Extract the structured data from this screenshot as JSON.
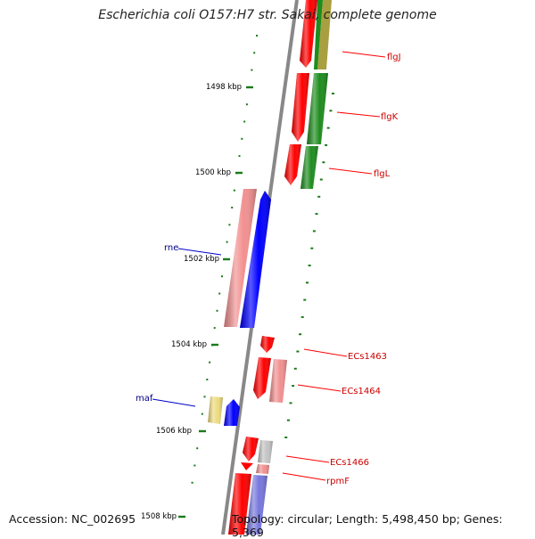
{
  "title": "Escherichia coli O157:H7 str. Sakai, complete genome",
  "accession": "Accession: NC_002695",
  "summary": "Topology: circular; Length: 5,498,450 bp; Genes: 5,369",
  "scale_ticks": [
    "1498 kbp",
    "1500 kbp",
    "1502 kbp",
    "1504 kbp",
    "1506 kbp",
    "1508 kbp"
  ],
  "gene_labels": [
    "flgJ",
    "flgK",
    "flgL",
    "rne",
    "ECs1463",
    "ECs1464",
    "maf",
    "ECs1466",
    "rpmF"
  ],
  "colors": {
    "red": "#ff0000",
    "pink": "#f29090",
    "blue": "#0000ff",
    "lavender": "#7777dd",
    "green": "#1e8c1e",
    "olive": "#a8a040",
    "yellow": "#eedc80",
    "gray": "#c4c4c4",
    "backbone": "#888888",
    "tick_green": "#1a7a1a",
    "label_red": "#cc0000",
    "label_blue": "#000088"
  }
}
